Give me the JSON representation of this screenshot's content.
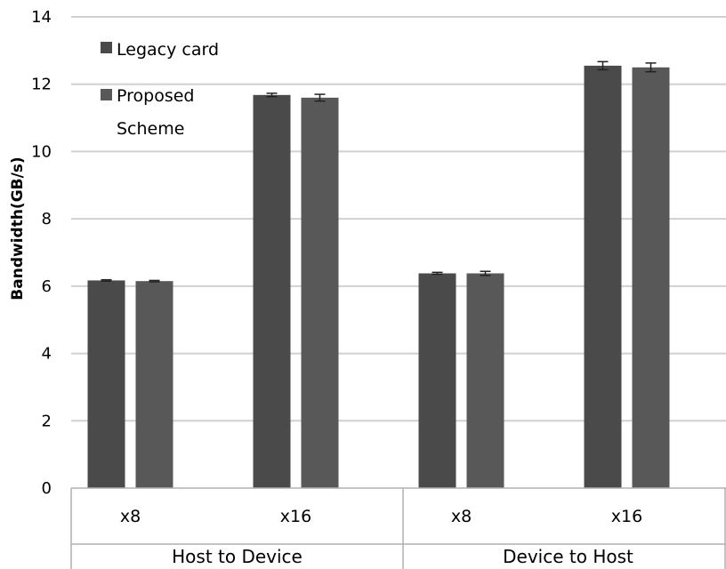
{
  "chart_data": {
    "type": "bar",
    "ylabel": "Bandwidth(GB/s)",
    "ylim": [
      0,
      14
    ],
    "yticks": [
      0,
      2,
      4,
      6,
      8,
      10,
      12,
      14
    ],
    "grid": true,
    "legend_position": "top-left",
    "groups": [
      {
        "label": "Host to Device",
        "categories": [
          "x8",
          "x16"
        ]
      },
      {
        "label": "Device to Host",
        "categories": [
          "x8",
          "x16"
        ]
      }
    ],
    "categories": [
      "x8",
      "x16",
      "x8",
      "x16"
    ],
    "series": [
      {
        "name": "Legacy card",
        "color": "#4a4a4a",
        "values": [
          6.17,
          11.68,
          6.38,
          12.55
        ],
        "errors": [
          0.02,
          0.05,
          0.03,
          0.12
        ]
      },
      {
        "name": "Proposed Scheme",
        "color": "#585858",
        "values": [
          6.15,
          11.6,
          6.38,
          12.5
        ],
        "errors": [
          0.02,
          0.1,
          0.06,
          0.13
        ]
      }
    ]
  }
}
